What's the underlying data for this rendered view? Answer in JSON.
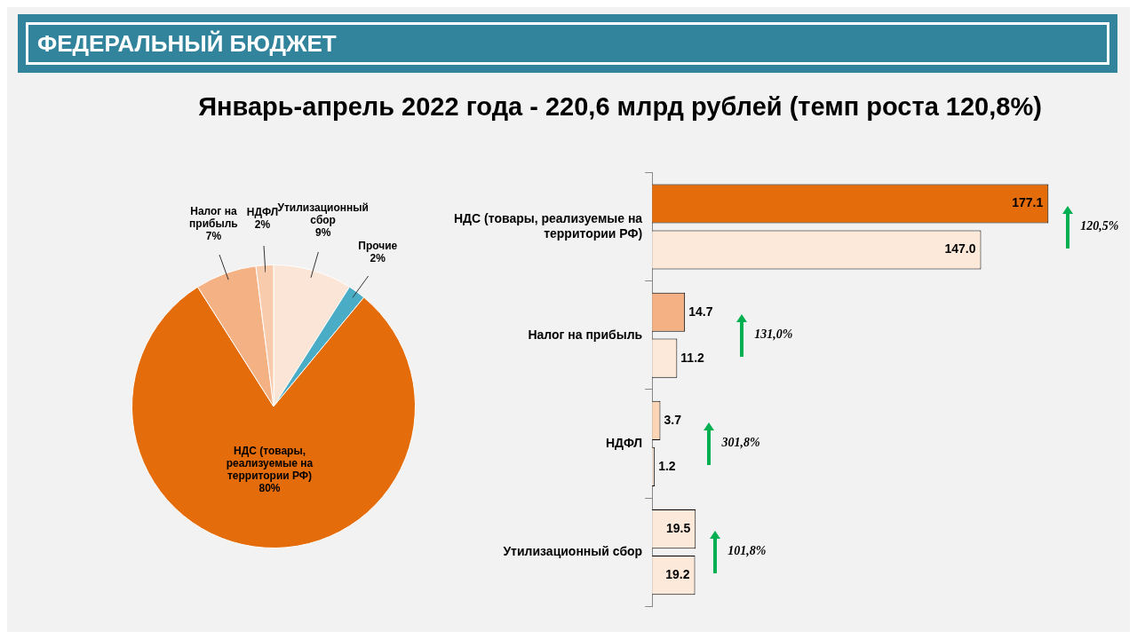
{
  "chart_data": [
    {
      "type": "pie",
      "title": "ФЕДЕРАЛЬНЫЙ БЮДЖЕТ",
      "subtitle": "Январь-апрель 2022 года - 220,6 млрд рублей (темп роста 120,8%)",
      "categories": [
        "Утилизационный сбор",
        "Прочие",
        "НДС (товары, реализуемые на территории РФ)",
        "Налог на прибыль",
        "НДФЛ"
      ],
      "values": [
        9,
        2,
        80,
        7,
        2
      ],
      "colors": [
        "#fbe5d6",
        "#4bacc6",
        "#e46c0a",
        "#f4b183",
        "#f8cbad"
      ],
      "value_labels": [
        "9%",
        "2%",
        "80%",
        "7%",
        "2%"
      ]
    },
    {
      "type": "bar",
      "orientation": "horizontal",
      "categories": [
        "НДС (товары, реализуемые на территории РФ)",
        "Налог на прибыль",
        "НДФЛ",
        "Утилизационный сбор"
      ],
      "series": [
        {
          "colors": [
            "#e46c0a",
            "#f4b183",
            "#fbd5b5",
            "#fde9d9"
          ],
          "values": [
            177.1,
            14.7,
            3.7,
            19.5
          ],
          "value_labels": [
            "177.1",
            "14.7",
            "3.7",
            "19.5"
          ]
        },
        {
          "colors": [
            "#fde9d9",
            "#fde9d9",
            "#fde9d9",
            "#fde9d9"
          ],
          "values": [
            147.0,
            11.2,
            1.2,
            19.2
          ],
          "value_labels": [
            "147.0",
            "11.2",
            "1.2",
            "19.2"
          ]
        }
      ],
      "annotations": [
        "120,5%",
        "131,0%",
        "301,8%",
        "101,8%"
      ]
    }
  ]
}
